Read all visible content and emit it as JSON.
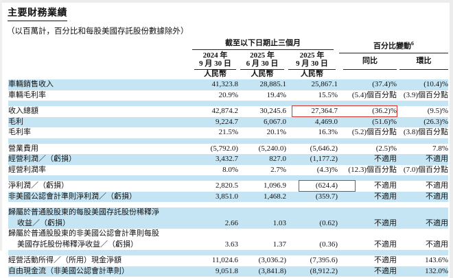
{
  "page": {
    "title": "主要財務業績",
    "note": "（以百萬計，百分比和每股美國存託股份數據除外）"
  },
  "table": {
    "group_headers": {
      "period": "截至以下日期止三個月",
      "pct_change": "百分比變動",
      "pct_change_footnote": "6"
    },
    "col_headers": [
      {
        "year": "2024 年",
        "date": "9 月 30 日",
        "currency": "人民幣"
      },
      {
        "year": "2025 年",
        "date": "6 月 30 日",
        "currency": "人民幣"
      },
      {
        "year": "2025 年",
        "date": "9 月 30 日",
        "currency": "人民幣"
      }
    ],
    "pct_headers": [
      "同比",
      "環比"
    ],
    "band_color": "#c5e5f4",
    "highlight_color": "#d0342c",
    "rows": [
      {
        "label": [
          "車輛銷售收入"
        ],
        "values": [
          "41,323.8",
          "28,885.1",
          "25,867.1",
          "(37.4)%",
          "(10.4)%"
        ],
        "shaded": true
      },
      {
        "label": [
          "車輛毛利率"
        ],
        "values": [
          "20.9%",
          "19.4%",
          "15.5%",
          "(5.4)個百分點",
          "(3.9)個百分點"
        ],
        "shaded": false
      },
      {
        "blank": true,
        "shaded": true
      },
      {
        "label": [
          "收入總額"
        ],
        "values": [
          "42,874.2",
          "30,245.6",
          "27,364.7",
          "(36.2)%",
          "(9.5)%"
        ],
        "shaded": false,
        "highlight": "q3-and-yoy"
      },
      {
        "label": [
          "毛利"
        ],
        "values": [
          "9,224.7",
          "6,067.0",
          "4,469.0",
          "(51.6)%",
          "(26.3)%"
        ],
        "shaded": true
      },
      {
        "label": [
          "毛利率"
        ],
        "values": [
          "21.5%",
          "20.1%",
          "16.3%",
          "(5.2)個百分點",
          "(3.8)個百分點"
        ],
        "shaded": false
      },
      {
        "blank": true,
        "shaded": true
      },
      {
        "label": [
          "營業費用"
        ],
        "values": [
          "(5,792.0)",
          "(5,240.0)",
          "(5,646.2)",
          "(2.5)%",
          "7.8%"
        ],
        "shaded": false
      },
      {
        "label": [
          "經營利潤／（虧損）"
        ],
        "values": [
          "3,432.7",
          "827.0",
          "(1,177.2)",
          "不適用",
          "不適用"
        ],
        "shaded": true
      },
      {
        "label": [
          "經營利潤率"
        ],
        "values": [
          "8.0%",
          "2.7%",
          "(4.3)%",
          "(12.3)個百分點",
          "(7.0)個百分點"
        ],
        "shaded": false
      },
      {
        "blank": true,
        "shaded": true
      },
      {
        "label": [
          "淨利潤／（虧損）"
        ],
        "values": [
          "2,820.5",
          "1,096.9",
          "(624.4)",
          "不適用",
          "不適用"
        ],
        "shaded": false,
        "highlight": "q3-only"
      },
      {
        "label": [
          "非美國公認會計準則淨利潤／（虧損）"
        ],
        "values": [
          "3,851.0",
          "1,468.2",
          "(359.7)",
          "不適用",
          "不適用"
        ],
        "shaded": true
      },
      {
        "blank": true,
        "shaded": false
      },
      {
        "label": [
          "歸屬於普通股股東的每股美國存託股份稀釋淨",
          "收益／（虧損）"
        ],
        "values": [
          "2.66",
          "1.03",
          "(0.62)",
          "不適用",
          "不適用"
        ],
        "shaded": true
      },
      {
        "label": [
          "歸屬於普通股股東的非美國公認會計準則每股",
          "美國存託股份稀釋淨收益／（虧損）"
        ],
        "values": [
          "3.63",
          "1.37",
          "(0.36)",
          "不適用",
          "不適用"
        ],
        "shaded": false
      },
      {
        "blank": true,
        "shaded": true
      },
      {
        "label": [
          "經營活動所得／（所用）現金淨額"
        ],
        "values": [
          "11,024.6",
          "(3,036.2)",
          "(7,395.6)",
          "不適用",
          "143.6%"
        ],
        "shaded": false
      },
      {
        "label": [
          "自由現金流（非美國公認會計準則）"
        ],
        "values": [
          "9,051.8",
          "(3,841.8)",
          "(8,912.2)",
          "不適用",
          "132.0%"
        ],
        "shaded": true
      }
    ]
  }
}
